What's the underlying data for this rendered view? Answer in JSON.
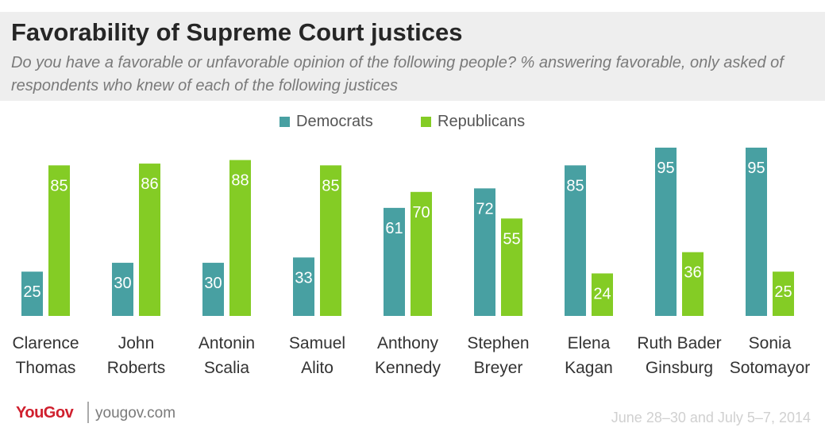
{
  "title": "Favorability of Supreme Court justices",
  "subtitle": "Do you have a favorable or unfavorable opinion of the following people? % answering favorable, only asked of respondents who knew of each of the following justices",
  "footer": {
    "logo": "YouGov",
    "url": "yougov.com",
    "date": "June 28–30 and July 5–7, 2014"
  },
  "colors": {
    "democrats": "#48a0a2",
    "republicans": "#84cc25"
  },
  "chart_data": {
    "type": "bar",
    "categories": [
      [
        "Clarence",
        "Thomas"
      ],
      [
        "John",
        "Roberts"
      ],
      [
        "Antonin",
        "Scalia"
      ],
      [
        "Samuel",
        "Alito"
      ],
      [
        "Anthony",
        "Kennedy"
      ],
      [
        "Stephen",
        "Breyer"
      ],
      [
        "Elena",
        "Kagan"
      ],
      [
        "Ruth Bader",
        "Ginsburg"
      ],
      [
        "Sonia",
        "Sotomayor"
      ]
    ],
    "series": [
      {
        "name": "Democrats",
        "values": [
          25,
          30,
          30,
          33,
          61,
          72,
          85,
          95,
          95
        ]
      },
      {
        "name": "Republicans",
        "values": [
          85,
          86,
          88,
          85,
          70,
          55,
          24,
          36,
          25
        ]
      }
    ],
    "ylim": [
      0,
      95
    ],
    "grid": false,
    "legend": "top-center"
  }
}
